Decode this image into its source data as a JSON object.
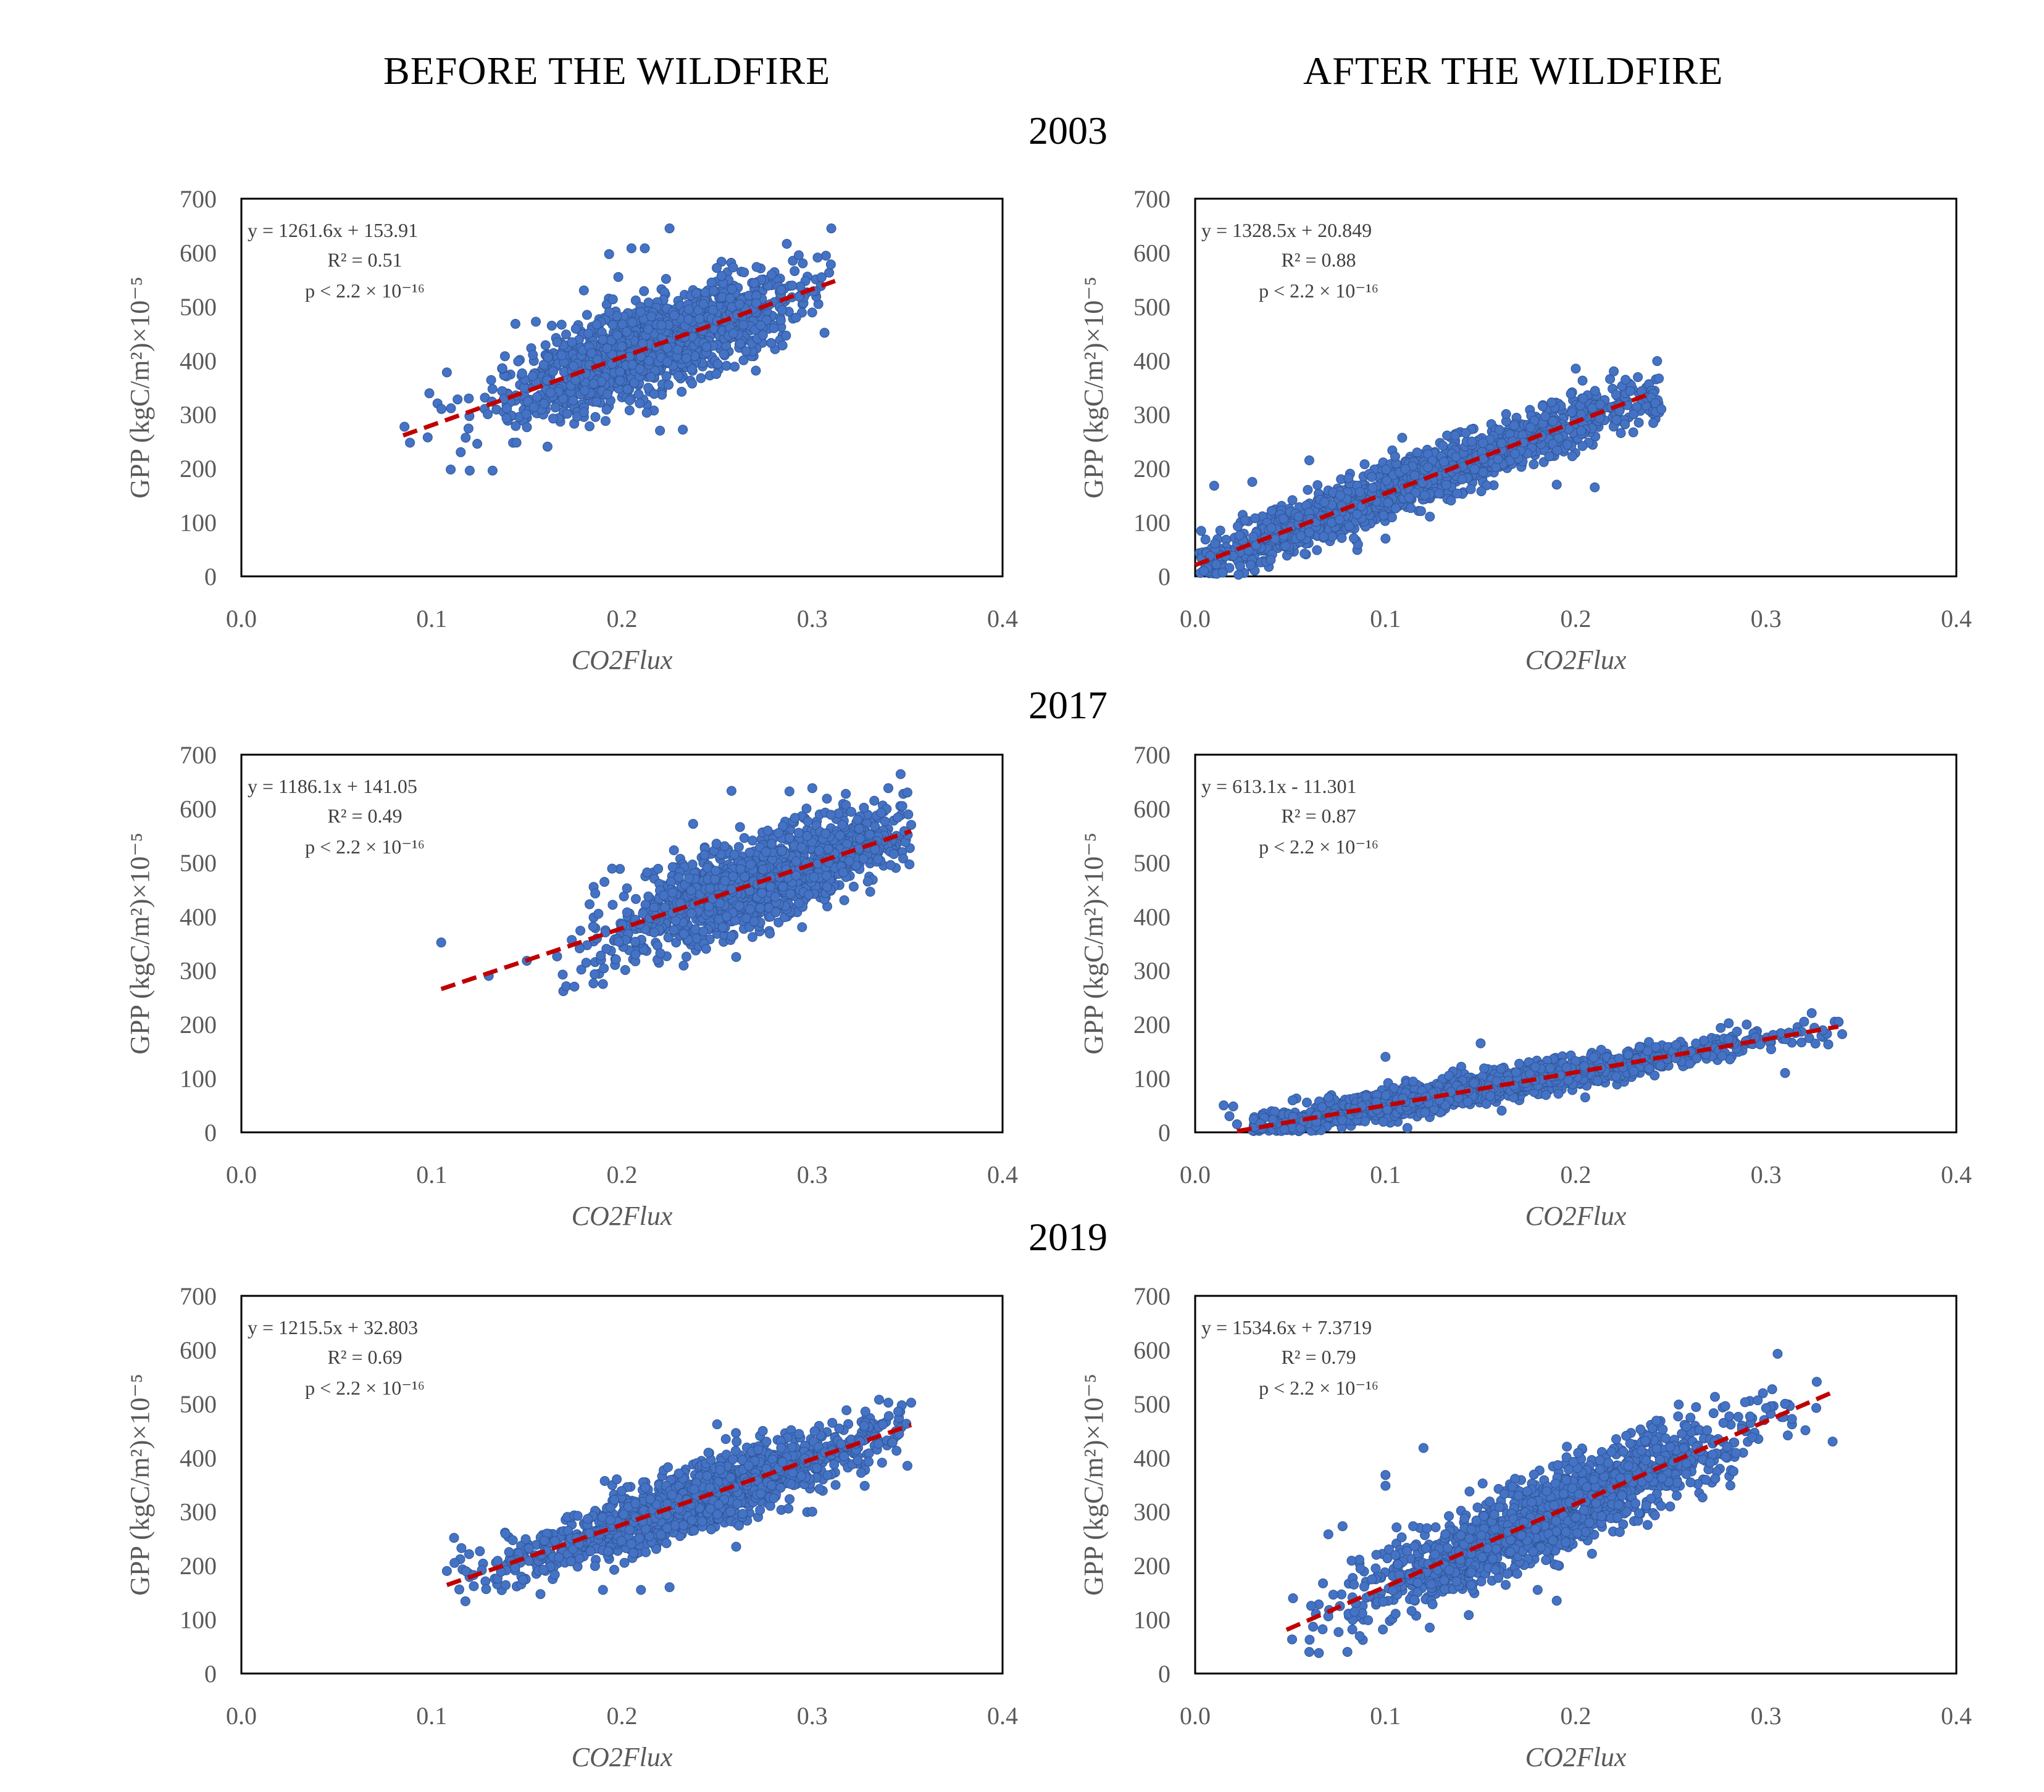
{
  "headings": {
    "before": "BEFORE THE WILDFIRE",
    "after": "AFTER THE WILDFIRE"
  },
  "years": [
    "2003",
    "2017",
    "2019"
  ],
  "colors": {
    "points": "#4472C4",
    "pointEdge": "#2F5597",
    "trend": "#C00000",
    "frame": "#000000"
  },
  "chart_data": [
    {
      "type": "scatter",
      "year": "2003",
      "panel": "before",
      "xlabel": "CO2Flux",
      "ylabel": "GPP (kgC/m²)×10⁻⁵",
      "xlim": [
        0,
        0.4
      ],
      "ylim": [
        0,
        700
      ],
      "xticks": [
        "0.0",
        "0.1",
        "0.2",
        "0.3",
        "0.4"
      ],
      "yticks": [
        "0",
        "100",
        "200",
        "300",
        "400",
        "500",
        "600",
        "700"
      ],
      "equation": "y = 1261.6x + 153.91",
      "r2": "R² = 0.51",
      "pvalue": "p < 2.2 × 10⁻¹⁶",
      "slope": 1261.6,
      "intercept": 153.91,
      "fit_x": [
        0.085,
        0.312
      ],
      "cloud": {
        "x_min": 0.085,
        "x_max": 0.312,
        "x_center": 0.215,
        "x_sd": 0.038,
        "y_sd": 42,
        "n": 1400
      },
      "outliers": [
        [
          0.225,
          645
        ],
        [
          0.31,
          645
        ],
        [
          0.205,
          608
        ],
        [
          0.212,
          608
        ],
        [
          0.11,
          198
        ],
        [
          0.12,
          196
        ],
        [
          0.132,
          196
        ],
        [
          0.108,
          378
        ],
        [
          0.144,
          468
        ],
        [
          0.22,
          270
        ],
        [
          0.232,
          272
        ],
        [
          0.18,
          530
        ]
      ]
    },
    {
      "type": "scatter",
      "year": "2003",
      "panel": "after",
      "xlabel": "CO2Flux",
      "ylabel": "GPP (kgC/m²)×10⁻⁵",
      "xlim": [
        0,
        0.4
      ],
      "ylim": [
        0,
        700
      ],
      "xticks": [
        "0.0",
        "0.1",
        "0.2",
        "0.3",
        "0.4"
      ],
      "yticks": [
        "0",
        "100",
        "200",
        "300",
        "400",
        "500",
        "600",
        "700"
      ],
      "equation": "y = 1328.5x + 20.849",
      "r2": "R² = 0.88",
      "pvalue": "p < 2.2 × 10⁻¹⁶",
      "slope": 1328.5,
      "intercept": 20.849,
      "fit_x": [
        0.0,
        0.24
      ],
      "cloud": {
        "x_min": 0.002,
        "x_max": 0.245,
        "x_center": 0.11,
        "x_sd": 0.07,
        "y_sd": 25,
        "n": 1500
      },
      "outliers": [
        [
          0.01,
          168
        ],
        [
          0.03,
          175
        ],
        [
          0.06,
          215
        ],
        [
          0.2,
          385
        ],
        [
          0.19,
          170
        ],
        [
          0.21,
          165
        ],
        [
          0.245,
          310
        ],
        [
          0.22,
          380
        ],
        [
          0.1,
          70
        ]
      ]
    },
    {
      "type": "scatter",
      "year": "2017",
      "panel": "before",
      "xlabel": "CO2Flux",
      "ylabel": "GPP (kgC/m²)×10⁻⁵",
      "xlim": [
        0,
        0.4
      ],
      "ylim": [
        0,
        700
      ],
      "xticks": [
        "0.0",
        "0.1",
        "0.2",
        "0.3",
        "0.4"
      ],
      "yticks": [
        "0",
        "100",
        "200",
        "300",
        "400",
        "500",
        "600",
        "700"
      ],
      "equation": "y = 1186.1x + 141.05",
      "r2": "R² = 0.49",
      "pvalue": "p < 2.2 × 10⁻¹⁶",
      "slope": 1186.1,
      "intercept": 141.05,
      "fit_x": [
        0.105,
        0.352
      ],
      "cloud": {
        "x_min": 0.165,
        "x_max": 0.352,
        "x_center": 0.275,
        "x_sd": 0.04,
        "y_sd": 42,
        "n": 1400
      },
      "outliers": [
        [
          0.105,
          352
        ],
        [
          0.13,
          290
        ],
        [
          0.15,
          318
        ],
        [
          0.175,
          270
        ],
        [
          0.19,
          275
        ],
        [
          0.3,
          638
        ],
        [
          0.288,
          632
        ],
        [
          0.34,
          638
        ],
        [
          0.35,
          630
        ],
        [
          0.352,
          570
        ],
        [
          0.26,
          325
        ]
      ]
    },
    {
      "type": "scatter",
      "year": "2017",
      "panel": "after",
      "xlabel": "CO2Flux",
      "ylabel": "GPP (kgC/m²)×10⁻⁵",
      "xlim": [
        0,
        0.4
      ],
      "ylim": [
        0,
        700
      ],
      "xticks": [
        "0.0",
        "0.1",
        "0.2",
        "0.3",
        "0.4"
      ],
      "yticks": [
        "0",
        "100",
        "200",
        "300",
        "400",
        "500",
        "600",
        "700"
      ],
      "equation": "y = 613.1x - 11.301",
      "r2": "R² = 0.87",
      "pvalue": "p < 2.2 × 10⁻¹⁶",
      "slope": 613.1,
      "intercept": -11.301,
      "fit_x": [
        0.022,
        0.338
      ],
      "cloud": {
        "x_min": 0.03,
        "x_max": 0.34,
        "x_center": 0.14,
        "x_sd": 0.075,
        "y_sd": 14,
        "n": 1500
      },
      "outliers": [
        [
          0.015,
          50
        ],
        [
          0.018,
          30
        ],
        [
          0.02,
          48
        ],
        [
          0.022,
          15
        ],
        [
          0.15,
          165
        ],
        [
          0.1,
          140
        ],
        [
          0.32,
          205
        ],
        [
          0.338,
          205
        ],
        [
          0.34,
          182
        ],
        [
          0.31,
          110
        ]
      ]
    },
    {
      "type": "scatter",
      "year": "2019",
      "panel": "before",
      "xlabel": "CO2Flux",
      "ylabel": "GPP (kgC/m²)×10⁻⁵",
      "xlim": [
        0,
        0.4
      ],
      "ylim": [
        0,
        700
      ],
      "xticks": [
        "0.0",
        "0.1",
        "0.2",
        "0.3",
        "0.4"
      ],
      "yticks": [
        "0",
        "100",
        "200",
        "300",
        "400",
        "500",
        "600",
        "700"
      ],
      "equation": "y = 1215.5x + 32.803",
      "r2": "R² = 0.69",
      "pvalue": "p < 2.2 × 10⁻¹⁶",
      "slope": 1215.5,
      "intercept": 32.803,
      "fit_x": [
        0.108,
        0.352
      ],
      "cloud": {
        "x_min": 0.11,
        "x_max": 0.352,
        "x_center": 0.24,
        "x_sd": 0.05,
        "y_sd": 30,
        "n": 1400
      },
      "outliers": [
        [
          0.108,
          190
        ],
        [
          0.115,
          212
        ],
        [
          0.112,
          205
        ],
        [
          0.19,
          155
        ],
        [
          0.21,
          155
        ],
        [
          0.225,
          160
        ],
        [
          0.26,
          235
        ],
        [
          0.3,
          300
        ],
        [
          0.35,
          385
        ],
        [
          0.352,
          502
        ],
        [
          0.34,
          502
        ],
        [
          0.25,
          462
        ]
      ]
    },
    {
      "type": "scatter",
      "year": "2019",
      "panel": "after",
      "xlabel": "CO2Flux",
      "ylabel": "GPP (kgC/m²)×10⁻⁵",
      "xlim": [
        0,
        0.4
      ],
      "ylim": [
        0,
        700
      ],
      "xticks": [
        "0.0",
        "0.1",
        "0.2",
        "0.3",
        "0.4"
      ],
      "yticks": [
        "0",
        "100",
        "200",
        "300",
        "400",
        "500",
        "600",
        "700"
      ],
      "equation": "y = 1534.6x + 7.3719",
      "r2": "R² = 0.79",
      "pvalue": "p < 2.2 × 10⁻¹⁶",
      "slope": 1534.6,
      "intercept": 7.3719,
      "fit_x": [
        0.048,
        0.335
      ],
      "cloud": {
        "x_min": 0.048,
        "x_max": 0.335,
        "x_center": 0.185,
        "x_sd": 0.05,
        "y_sd": 38,
        "n": 1500
      },
      "outliers": [
        [
          0.1,
          368
        ],
        [
          0.1,
          348
        ],
        [
          0.12,
          418
        ],
        [
          0.07,
          258
        ],
        [
          0.06,
          40
        ],
        [
          0.08,
          40
        ],
        [
          0.065,
          38
        ],
        [
          0.335,
          430
        ],
        [
          0.31,
          500
        ],
        [
          0.3,
          492
        ],
        [
          0.19,
          135
        ],
        [
          0.18,
          155
        ]
      ]
    }
  ]
}
